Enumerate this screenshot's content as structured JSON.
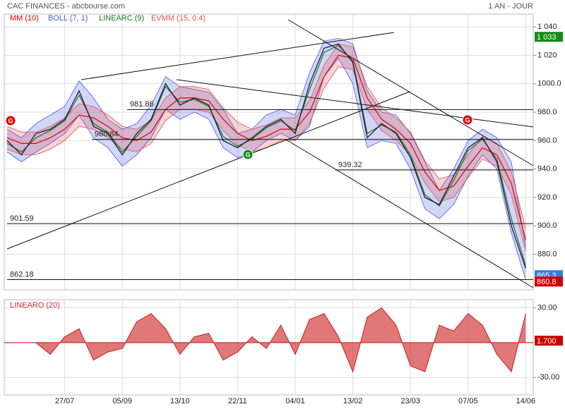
{
  "chart_data": [
    {
      "type": "line",
      "title": "CAC FINANCES - abcbourse.com",
      "subtitle": "1 AN - JOUR",
      "ylim": [
        855,
        1049
      ],
      "yticks": [
        {
          "value": 1040,
          "label": "1 040"
        },
        {
          "value": 1020,
          "label": "1 020"
        },
        {
          "value": 1000,
          "label": "1000.0"
        },
        {
          "value": 980,
          "label": "980.0"
        },
        {
          "value": 960,
          "label": "960.0"
        },
        {
          "value": 940,
          "label": "940.0"
        },
        {
          "value": 920,
          "label": "920.0"
        },
        {
          "value": 900,
          "label": "900.0"
        },
        {
          "value": 880,
          "label": "880.0"
        }
      ],
      "grid": true,
      "close": {
        "color": "#1c1c44",
        "values": [
          960,
          950,
          965,
          968,
          975,
          995,
          970,
          965,
          950,
          965,
          975,
          1000,
          985,
          990,
          985,
          960,
          955,
          962,
          970,
          975,
          965,
          1000,
          1025,
          1028,
          1015,
          962,
          972,
          965,
          948,
          920,
          915,
          935,
          955,
          962,
          945,
          900,
          870
        ]
      },
      "series": [
        {
          "name": "MM (10)",
          "color": "#e00000",
          "values": [
            962,
            958,
            958,
            962,
            968,
            978,
            976,
            970,
            962,
            960,
            966,
            982,
            990,
            990,
            988,
            975,
            965,
            960,
            963,
            968,
            968,
            980,
            1005,
            1020,
            1018,
            990,
            975,
            968,
            958,
            938,
            925,
            928,
            942,
            955,
            950,
            930,
            890
          ]
        },
        {
          "name": "LINEARC (9)",
          "color": "#1a7a1a",
          "values": [
            958,
            952,
            962,
            967,
            974,
            992,
            972,
            966,
            952,
            963,
            974,
            998,
            987,
            989,
            984,
            963,
            956,
            961,
            969,
            974,
            967,
            996,
            1022,
            1027,
            1016,
            965,
            971,
            966,
            950,
            922,
            914,
            932,
            953,
            961,
            947,
            905,
            872
          ]
        }
      ],
      "bands": [
        {
          "name": "BOLL (7, 1)",
          "color": "#4a5ae8",
          "upper": [
            968,
            962,
            972,
            978,
            984,
            1002,
            990,
            975,
            968,
            972,
            985,
            1005,
            998,
            996,
            994,
            982,
            965,
            968,
            978,
            982,
            978,
            1008,
            1030,
            1032,
            1028,
            995,
            980,
            978,
            965,
            945,
            925,
            940,
            960,
            968,
            962,
            945,
            885
          ],
          "lower": [
            952,
            945,
            952,
            958,
            965,
            978,
            962,
            955,
            942,
            950,
            962,
            982,
            975,
            980,
            975,
            955,
            948,
            952,
            960,
            965,
            960,
            970,
            1005,
            1018,
            1000,
            955,
            960,
            958,
            940,
            912,
            905,
            915,
            935,
            950,
            940,
            895,
            862
          ]
        },
        {
          "name": "EVMM (15, 0.4)",
          "color": "#e05050",
          "upper": [
            970,
            966,
            966,
            970,
            976,
            986,
            984,
            978,
            970,
            968,
            974,
            990,
            998,
            998,
            996,
            983,
            973,
            968,
            971,
            976,
            976,
            988,
            1013,
            1028,
            1026,
            998,
            983,
            976,
            966,
            946,
            933,
            936,
            950,
            963,
            958,
            938,
            898
          ],
          "lower": [
            954,
            950,
            950,
            954,
            960,
            970,
            968,
            962,
            954,
            952,
            958,
            974,
            982,
            982,
            980,
            967,
            957,
            952,
            955,
            960,
            960,
            972,
            997,
            1012,
            1010,
            982,
            967,
            960,
            950,
            930,
            917,
            920,
            934,
            947,
            942,
            922,
            882
          ]
        }
      ],
      "levels": [
        981.86,
        960.84,
        939.32,
        901.59,
        862.18
      ],
      "price_tags": [
        {
          "value": 1033,
          "label": "1 033",
          "color": "#158a15"
        },
        {
          "value": 865.3,
          "label": "865.3",
          "color": "#3a78e0"
        },
        {
          "value": 860.8,
          "label": "860.8",
          "color": "#cc0000"
        }
      ],
      "signals": [
        {
          "label": "G",
          "color": "#e00000"
        },
        {
          "label": "G",
          "color": "#158a15"
        },
        {
          "label": "G",
          "color": "#e00000"
        }
      ]
    },
    {
      "type": "area",
      "title": "LINEARO (20)",
      "categories": [
        null,
        null,
        null,
        null,
        "27/07",
        null,
        null,
        null,
        "05/09",
        null,
        null,
        null,
        "13/10",
        null,
        null,
        null,
        "22/11",
        null,
        null,
        null,
        "04/01",
        null,
        null,
        null,
        "13/02",
        null,
        null,
        null,
        "23/03",
        null,
        null,
        null,
        "07/05",
        null,
        null,
        null,
        "14/06"
      ],
      "ylim": [
        -45,
        37
      ],
      "yticks": [
        {
          "value": 30,
          "label": "30.00"
        },
        {
          "value": -30,
          "label": "-30.00"
        }
      ],
      "grid": true,
      "series": [
        {
          "name": "LINEARO (20)",
          "color": "#d03030",
          "values": [
            0,
            0,
            0,
            -10,
            5,
            12,
            -15,
            -8,
            -5,
            18,
            25,
            12,
            -10,
            5,
            8,
            -15,
            -8,
            5,
            -5,
            15,
            -10,
            20,
            25,
            5,
            -25,
            22,
            30,
            15,
            -20,
            -25,
            15,
            10,
            25,
            15,
            -10,
            -25,
            25
          ]
        }
      ],
      "price_tags": [
        {
          "value": 1.7,
          "label": "1.700",
          "color": "#cc0000"
        }
      ]
    }
  ]
}
